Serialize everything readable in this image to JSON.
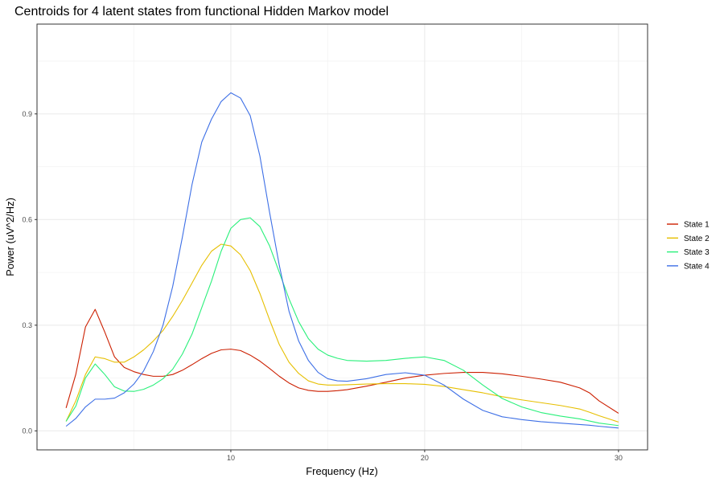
{
  "chart_data": {
    "type": "line",
    "title": "Centroids for 4 latent states from functional Hidden Markov model",
    "xlabel": "Frequency (Hz)",
    "ylabel": "Power (uV^2/Hz)",
    "xlim": [
      0,
      31.5
    ],
    "ylim": [
      -0.054,
      1.155
    ],
    "x_ticks": [
      10,
      20,
      30
    ],
    "x_tick_labels": [
      "10",
      "20",
      "30"
    ],
    "y_ticks": [
      0.0,
      0.3,
      0.6,
      0.9
    ],
    "y_tick_labels": [
      "0.0",
      "0.3",
      "0.6",
      "0.9"
    ],
    "grid": true,
    "legend_position": "right",
    "x": [
      1.5,
      2,
      2.5,
      3,
      3.5,
      4,
      4.5,
      5,
      5.5,
      6,
      6.5,
      7,
      7.5,
      8,
      8.5,
      9,
      9.5,
      10,
      10.5,
      11,
      11.5,
      12,
      12.5,
      13,
      13.5,
      14,
      14.5,
      15,
      15.5,
      16,
      17,
      18,
      19,
      20,
      21,
      22,
      23,
      24,
      25,
      26,
      27,
      28,
      28.5,
      29,
      30
    ],
    "series": [
      {
        "name": "State 1",
        "color": "#cc1f00",
        "values": [
          0.065,
          0.16,
          0.295,
          0.345,
          0.28,
          0.21,
          0.18,
          0.168,
          0.16,
          0.155,
          0.155,
          0.16,
          0.172,
          0.188,
          0.205,
          0.22,
          0.23,
          0.232,
          0.228,
          0.215,
          0.198,
          0.177,
          0.155,
          0.136,
          0.122,
          0.115,
          0.112,
          0.112,
          0.114,
          0.117,
          0.127,
          0.138,
          0.15,
          0.158,
          0.163,
          0.166,
          0.166,
          0.162,
          0.155,
          0.147,
          0.138,
          0.122,
          0.108,
          0.085,
          0.05
        ]
      },
      {
        "name": "State 2",
        "color": "#e6bf00",
        "values": [
          0.027,
          0.085,
          0.16,
          0.21,
          0.205,
          0.195,
          0.195,
          0.21,
          0.23,
          0.255,
          0.285,
          0.325,
          0.37,
          0.42,
          0.47,
          0.51,
          0.53,
          0.525,
          0.5,
          0.455,
          0.39,
          0.315,
          0.245,
          0.195,
          0.163,
          0.142,
          0.133,
          0.13,
          0.13,
          0.131,
          0.133,
          0.134,
          0.134,
          0.132,
          0.126,
          0.117,
          0.108,
          0.097,
          0.088,
          0.08,
          0.072,
          0.062,
          0.053,
          0.043,
          0.025
        ]
      },
      {
        "name": "State 3",
        "color": "#29f07a",
        "values": [
          0.027,
          0.07,
          0.15,
          0.19,
          0.16,
          0.125,
          0.113,
          0.112,
          0.118,
          0.13,
          0.148,
          0.175,
          0.218,
          0.275,
          0.35,
          0.425,
          0.51,
          0.575,
          0.6,
          0.605,
          0.58,
          0.525,
          0.45,
          0.375,
          0.31,
          0.262,
          0.232,
          0.215,
          0.206,
          0.2,
          0.198,
          0.2,
          0.206,
          0.21,
          0.2,
          0.172,
          0.13,
          0.092,
          0.068,
          0.052,
          0.042,
          0.034,
          0.028,
          0.022,
          0.015
        ]
      },
      {
        "name": "State 4",
        "color": "#3d6fe6",
        "values": [
          0.013,
          0.035,
          0.068,
          0.09,
          0.09,
          0.093,
          0.108,
          0.133,
          0.17,
          0.225,
          0.3,
          0.41,
          0.55,
          0.7,
          0.82,
          0.885,
          0.935,
          0.96,
          0.945,
          0.895,
          0.78,
          0.62,
          0.47,
          0.34,
          0.255,
          0.2,
          0.166,
          0.148,
          0.142,
          0.141,
          0.148,
          0.16,
          0.165,
          0.158,
          0.13,
          0.09,
          0.058,
          0.04,
          0.032,
          0.026,
          0.022,
          0.018,
          0.016,
          0.013,
          0.008
        ]
      }
    ]
  }
}
